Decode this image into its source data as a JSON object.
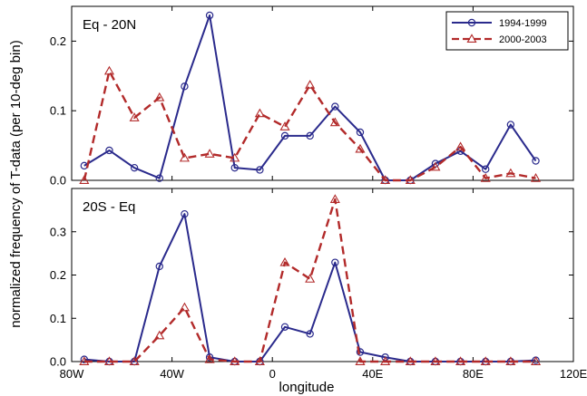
{
  "chart_data": {
    "type": "line",
    "ylabel": "normalized frequency of T-data  (per 10-deg bin)",
    "xlabel": "longitude",
    "xlim": [
      -80,
      120
    ],
    "x_ticks": [
      -80,
      -40,
      0,
      40,
      80,
      120
    ],
    "x_tick_labels": [
      "80W",
      "40W",
      "0",
      "40E",
      "80E",
      "120E"
    ],
    "legend": {
      "placement": "top-right",
      "entries": [
        "1994-1999",
        "2000-2003"
      ]
    },
    "colors": {
      "series1": "#2a2a8c",
      "series2": "#b22a2a"
    },
    "panels": [
      {
        "label": "Eq - 20N",
        "ylim": [
          0,
          0.25
        ],
        "y_ticks": [
          0,
          0.1,
          0.2
        ],
        "y_tick_labels": [
          "0.0",
          "0.1",
          "0.2"
        ],
        "show_legend": true,
        "series": [
          {
            "name": "1994-1999",
            "x": [
              -75,
              -65,
              -55,
              -45,
              -35,
              -25,
              -15,
              -5,
              5,
              15,
              25,
              35,
              45,
              55,
              65,
              75,
              85,
              95,
              105
            ],
            "values": [
              0.021,
              0.043,
              0.018,
              0.003,
              0.135,
              0.237,
              0.018,
              0.015,
              0.064,
              0.064,
              0.106,
              0.069,
              0.0,
              0.0,
              0.024,
              0.042,
              0.016,
              0.08,
              0.028
            ]
          },
          {
            "name": "2000-2003",
            "x": [
              -75,
              -65,
              -55,
              -45,
              -35,
              -25,
              -15,
              -5,
              5,
              15,
              25,
              35,
              45,
              55,
              65,
              75,
              85,
              95,
              105
            ],
            "values": [
              0.0,
              0.157,
              0.09,
              0.119,
              0.032,
              0.038,
              0.032,
              0.096,
              0.077,
              0.137,
              0.083,
              0.045,
              0.0,
              0.0,
              0.019,
              0.048,
              0.003,
              0.01,
              0.003
            ]
          }
        ]
      },
      {
        "label": "20S - Eq",
        "ylim": [
          0,
          0.4
        ],
        "y_ticks": [
          0,
          0.1,
          0.2,
          0.3
        ],
        "y_tick_labels": [
          "0.0",
          "0.1",
          "0.2",
          "0.3"
        ],
        "show_legend": false,
        "series": [
          {
            "name": "1994-1999",
            "x": [
              -75,
              -65,
              -55,
              -45,
              -35,
              -25,
              -15,
              -5,
              5,
              15,
              25,
              35,
              45,
              55,
              65,
              75,
              85,
              95,
              105
            ],
            "values": [
              0.005,
              0.0,
              0.0,
              0.22,
              0.341,
              0.01,
              0.0,
              0.0,
              0.08,
              0.064,
              0.229,
              0.022,
              0.01,
              0.0,
              0.0,
              0.0,
              0.0,
              0.0,
              0.003
            ]
          },
          {
            "name": "2000-2003",
            "x": [
              -75,
              -65,
              -55,
              -45,
              -35,
              -25,
              -15,
              -5,
              5,
              15,
              25,
              35,
              45,
              55,
              65,
              75,
              85,
              95,
              105
            ],
            "values": [
              0.0,
              0.0,
              0.0,
              0.06,
              0.125,
              0.005,
              0.0,
              0.0,
              0.229,
              0.191,
              0.375,
              0.0,
              0.0,
              0.0,
              0.0,
              0.0,
              0.0,
              0.0,
              0.0
            ]
          }
        ]
      }
    ]
  }
}
